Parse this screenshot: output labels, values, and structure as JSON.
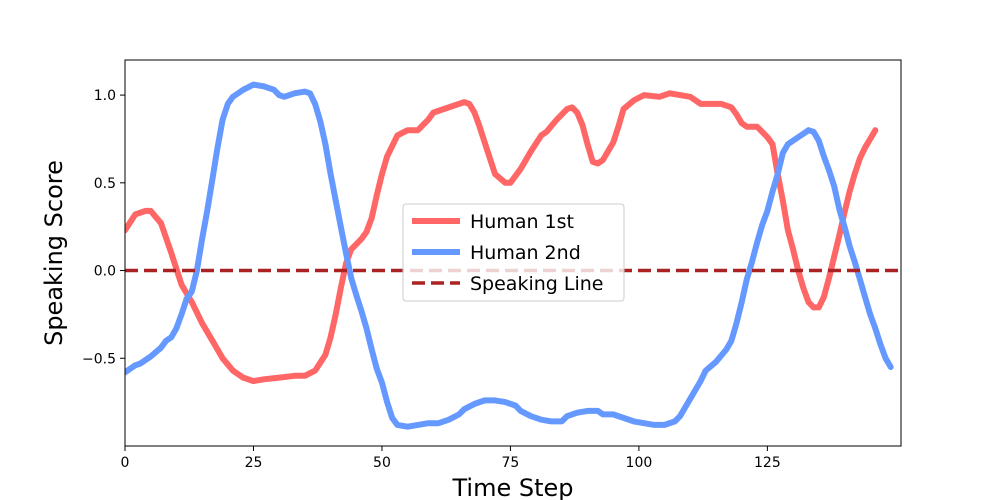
{
  "chart_data": {
    "type": "line",
    "title": "",
    "xlabel": "Time Step",
    "ylabel": "Speaking Score",
    "xlim": [
      0,
      151
    ],
    "ylim": [
      -1.0,
      1.2
    ],
    "x_ticks": [
      0,
      25,
      50,
      75,
      100,
      125
    ],
    "y_ticks": [
      -0.5,
      0.0,
      0.5,
      1.0
    ],
    "x_tick_labels": [
      "0",
      "25",
      "50",
      "75",
      "100",
      "125"
    ],
    "y_tick_labels": [
      "−0.5",
      "0.0",
      "0.5",
      "1.0"
    ],
    "grid": false,
    "legend": {
      "placement": "center"
    },
    "series": [
      {
        "name": "Human 1st",
        "color": "#ff6666",
        "style": "solid",
        "points": [
          [
            0,
            0.23
          ],
          [
            2,
            0.32
          ],
          [
            4,
            0.34
          ],
          [
            5,
            0.34
          ],
          [
            7,
            0.27
          ],
          [
            9,
            0.1
          ],
          [
            11,
            -0.08
          ],
          [
            13,
            -0.18
          ],
          [
            15,
            -0.3
          ],
          [
            17,
            -0.4
          ],
          [
            19,
            -0.5
          ],
          [
            21,
            -0.57
          ],
          [
            23,
            -0.61
          ],
          [
            25,
            -0.63
          ],
          [
            27,
            -0.62
          ],
          [
            30,
            -0.61
          ],
          [
            33,
            -0.6
          ],
          [
            35,
            -0.6
          ],
          [
            37,
            -0.57
          ],
          [
            39,
            -0.48
          ],
          [
            40,
            -0.38
          ],
          [
            41,
            -0.25
          ],
          [
            42,
            -0.1
          ],
          [
            43,
            0.04
          ],
          [
            44,
            0.12
          ],
          [
            46,
            0.18
          ],
          [
            47,
            0.22
          ],
          [
            48,
            0.3
          ],
          [
            49,
            0.43
          ],
          [
            50,
            0.55
          ],
          [
            51,
            0.65
          ],
          [
            53,
            0.77
          ],
          [
            55,
            0.8
          ],
          [
            57,
            0.8
          ],
          [
            59,
            0.86
          ],
          [
            60,
            0.9
          ],
          [
            62,
            0.92
          ],
          [
            64,
            0.94
          ],
          [
            66,
            0.96
          ],
          [
            67,
            0.95
          ],
          [
            68,
            0.9
          ],
          [
            69,
            0.82
          ],
          [
            70,
            0.73
          ],
          [
            71,
            0.64
          ],
          [
            72,
            0.55
          ],
          [
            74,
            0.5
          ],
          [
            75,
            0.5
          ],
          [
            77,
            0.58
          ],
          [
            79,
            0.68
          ],
          [
            81,
            0.77
          ],
          [
            82,
            0.79
          ],
          [
            84,
            0.86
          ],
          [
            86,
            0.92
          ],
          [
            87,
            0.93
          ],
          [
            88,
            0.9
          ],
          [
            89,
            0.83
          ],
          [
            90,
            0.72
          ],
          [
            91,
            0.62
          ],
          [
            92,
            0.61
          ],
          [
            93,
            0.63
          ],
          [
            95,
            0.73
          ],
          [
            96,
            0.82
          ],
          [
            97,
            0.92
          ],
          [
            99,
            0.97
          ],
          [
            101,
            1.0
          ],
          [
            104,
            0.99
          ],
          [
            106,
            1.01
          ],
          [
            108,
            1.0
          ],
          [
            110,
            0.99
          ],
          [
            112,
            0.95
          ],
          [
            114,
            0.95
          ],
          [
            116,
            0.95
          ],
          [
            117,
            0.94
          ],
          [
            118,
            0.93
          ],
          [
            119,
            0.89
          ],
          [
            120,
            0.84
          ],
          [
            121,
            0.82
          ],
          [
            122,
            0.82
          ],
          [
            123,
            0.82
          ],
          [
            125,
            0.76
          ],
          [
            126,
            0.72
          ],
          [
            127,
            0.55
          ],
          [
            128,
            0.4
          ],
          [
            129,
            0.23
          ],
          [
            130,
            0.12
          ],
          [
            131,
            0.0
          ],
          [
            132,
            -0.1
          ],
          [
            133,
            -0.18
          ],
          [
            134,
            -0.21
          ],
          [
            135,
            -0.21
          ],
          [
            136,
            -0.15
          ],
          [
            137,
            -0.04
          ],
          [
            138,
            0.08
          ],
          [
            139,
            0.2
          ],
          [
            140,
            0.33
          ],
          [
            141,
            0.45
          ],
          [
            142,
            0.55
          ],
          [
            143,
            0.64
          ],
          [
            144,
            0.7
          ],
          [
            145,
            0.75
          ],
          [
            146,
            0.8
          ]
        ]
      },
      {
        "name": "Human 2nd",
        "color": "#6699ff",
        "style": "solid",
        "points": [
          [
            0,
            -0.58
          ],
          [
            1,
            -0.56
          ],
          [
            2,
            -0.54
          ],
          [
            3,
            -0.53
          ],
          [
            5,
            -0.49
          ],
          [
            7,
            -0.44
          ],
          [
            8,
            -0.4
          ],
          [
            9,
            -0.38
          ],
          [
            10,
            -0.33
          ],
          [
            11,
            -0.25
          ],
          [
            12,
            -0.16
          ],
          [
            13,
            -0.12
          ],
          [
            14,
            0.0
          ],
          [
            15,
            0.18
          ],
          [
            16,
            0.34
          ],
          [
            17,
            0.52
          ],
          [
            18,
            0.7
          ],
          [
            19,
            0.86
          ],
          [
            20,
            0.95
          ],
          [
            21,
            0.99
          ],
          [
            23,
            1.03
          ],
          [
            25,
            1.06
          ],
          [
            27,
            1.05
          ],
          [
            29,
            1.03
          ],
          [
            30,
            1.0
          ],
          [
            31,
            0.99
          ],
          [
            33,
            1.01
          ],
          [
            35,
            1.02
          ],
          [
            36,
            1.01
          ],
          [
            37,
            0.95
          ],
          [
            38,
            0.85
          ],
          [
            39,
            0.72
          ],
          [
            40,
            0.55
          ],
          [
            41,
            0.4
          ],
          [
            42,
            0.25
          ],
          [
            43,
            0.1
          ],
          [
            44,
            -0.04
          ],
          [
            45,
            -0.14
          ],
          [
            46,
            -0.23
          ],
          [
            47,
            -0.33
          ],
          [
            48,
            -0.45
          ],
          [
            49,
            -0.56
          ],
          [
            50,
            -0.64
          ],
          [
            51,
            -0.75
          ],
          [
            52,
            -0.84
          ],
          [
            53,
            -0.88
          ],
          [
            55,
            -0.89
          ],
          [
            57,
            -0.88
          ],
          [
            59,
            -0.87
          ],
          [
            61,
            -0.87
          ],
          [
            63,
            -0.85
          ],
          [
            65,
            -0.82
          ],
          [
            66,
            -0.79
          ],
          [
            68,
            -0.76
          ],
          [
            70,
            -0.74
          ],
          [
            72,
            -0.74
          ],
          [
            74,
            -0.75
          ],
          [
            76,
            -0.77
          ],
          [
            77,
            -0.8
          ],
          [
            79,
            -0.83
          ],
          [
            81,
            -0.85
          ],
          [
            83,
            -0.86
          ],
          [
            85,
            -0.86
          ],
          [
            86,
            -0.83
          ],
          [
            88,
            -0.81
          ],
          [
            90,
            -0.8
          ],
          [
            92,
            -0.8
          ],
          [
            93,
            -0.82
          ],
          [
            95,
            -0.82
          ],
          [
            97,
            -0.84
          ],
          [
            99,
            -0.86
          ],
          [
            101,
            -0.87
          ],
          [
            103,
            -0.88
          ],
          [
            105,
            -0.88
          ],
          [
            107,
            -0.86
          ],
          [
            108,
            -0.83
          ],
          [
            109,
            -0.78
          ],
          [
            110,
            -0.73
          ],
          [
            112,
            -0.63
          ],
          [
            113,
            -0.57
          ],
          [
            115,
            -0.52
          ],
          [
            117,
            -0.45
          ],
          [
            118,
            -0.4
          ],
          [
            119,
            -0.3
          ],
          [
            120,
            -0.18
          ],
          [
            121,
            -0.05
          ],
          [
            122,
            0.05
          ],
          [
            123,
            0.16
          ],
          [
            124,
            0.26
          ],
          [
            125,
            0.34
          ],
          [
            126,
            0.45
          ],
          [
            127,
            0.55
          ],
          [
            128,
            0.67
          ],
          [
            129,
            0.72
          ],
          [
            131,
            0.76
          ],
          [
            132,
            0.78
          ],
          [
            133,
            0.8
          ],
          [
            134,
            0.79
          ],
          [
            135,
            0.74
          ],
          [
            136,
            0.65
          ],
          [
            137,
            0.57
          ],
          [
            138,
            0.48
          ],
          [
            139,
            0.35
          ],
          [
            140,
            0.25
          ],
          [
            141,
            0.14
          ],
          [
            142,
            0.05
          ],
          [
            143,
            -0.05
          ],
          [
            144,
            -0.15
          ],
          [
            145,
            -0.25
          ],
          [
            146,
            -0.33
          ],
          [
            147,
            -0.42
          ],
          [
            148,
            -0.5
          ],
          [
            149,
            -0.55
          ]
        ]
      },
      {
        "name": "Speaking Line",
        "color": "#aa2222",
        "style": "dashed",
        "points": [
          [
            0,
            0.0
          ],
          [
            151,
            0.0
          ]
        ]
      }
    ]
  }
}
